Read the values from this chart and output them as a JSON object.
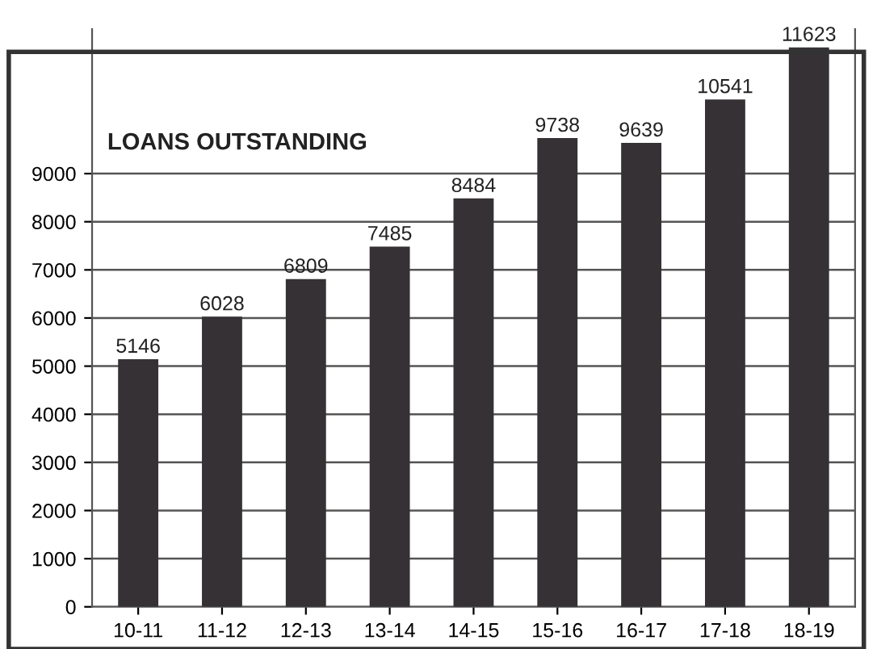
{
  "chart_data": {
    "type": "bar",
    "title": "LOANS OUTSTANDING",
    "categories": [
      "10-11",
      "11-12",
      "12-13",
      "13-14",
      "14-15",
      "15-16",
      "16-17",
      "17-18",
      "18-19"
    ],
    "values": [
      5146,
      6028,
      6809,
      7485,
      8484,
      9738,
      9639,
      10541,
      11623
    ],
    "color": "#353134",
    "data_labels": true,
    "ylim": [
      0,
      12000
    ],
    "yticks": [
      0,
      1000,
      2000,
      3000,
      4000,
      5000,
      6000,
      7000,
      8000,
      9000
    ],
    "grid": "y"
  }
}
